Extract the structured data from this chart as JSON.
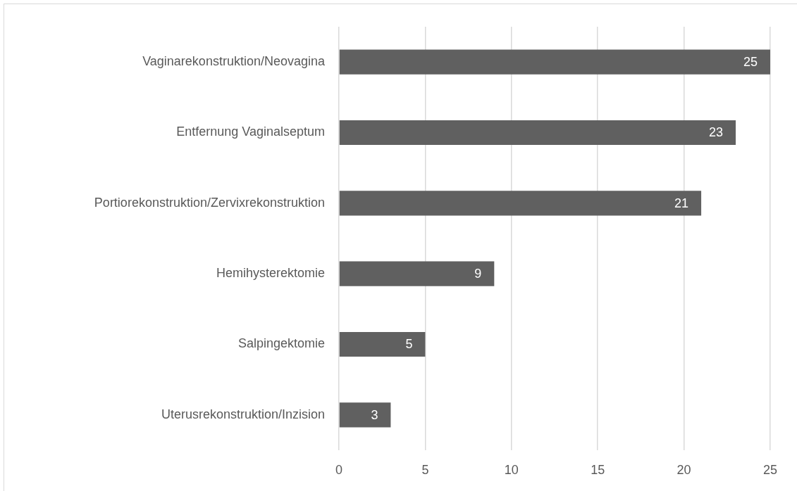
{
  "chart_data": {
    "type": "bar",
    "orientation": "horizontal",
    "categories": [
      "Vaginarekonstruktion/Neovagina",
      "Entfernung Vaginalseptum",
      "Portiorekonstruktion/Zervixrekonstruktion",
      "Hemihysterektomie",
      "Salpingektomie",
      "Uterusrekonstruktion/Inzision"
    ],
    "values": [
      25,
      23,
      21,
      9,
      5,
      3
    ],
    "color": "#606060",
    "xlim": [
      0,
      25
    ],
    "xticks": [
      0,
      5,
      10,
      15,
      20,
      25
    ],
    "grid": "x",
    "data_labels": true,
    "legend": false
  }
}
